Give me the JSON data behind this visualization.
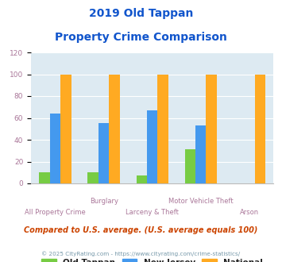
{
  "title_line1": "2019 Old Tappan",
  "title_line2": "Property Crime Comparison",
  "cat_labels_top": [
    "",
    "Burglary",
    "Motor Vehicle Theft",
    ""
  ],
  "cat_labels_bot": [
    "All Property Crime",
    "",
    "Larceny & Theft",
    "Arson"
  ],
  "series": {
    "Old Tappan": [
      10,
      10,
      7,
      31,
      0
    ],
    "New Jersey": [
      64,
      55,
      67,
      53,
      0
    ],
    "National": [
      100,
      100,
      100,
      100,
      100
    ]
  },
  "n_groups": 5,
  "colors": {
    "Old Tappan": "#77cc44",
    "New Jersey": "#4499ee",
    "National": "#ffaa22"
  },
  "ylim": [
    0,
    120
  ],
  "yticks": [
    0,
    20,
    40,
    60,
    80,
    100,
    120
  ],
  "background_color": "#ddeaf2",
  "title_color": "#1155cc",
  "axis_label_color_top": "#aa7799",
  "axis_label_color_bot": "#aa7799",
  "legend_label_color": "#222222",
  "footer_color": "#cc4400",
  "credit_color": "#7799aa",
  "footer_text": "Compared to U.S. average. (U.S. average equals 100)",
  "credit_text": "© 2025 CityRating.com - https://www.cityrating.com/crime-statistics/",
  "bar_width": 0.22,
  "figsize": [
    3.55,
    3.3
  ],
  "dpi": 100
}
